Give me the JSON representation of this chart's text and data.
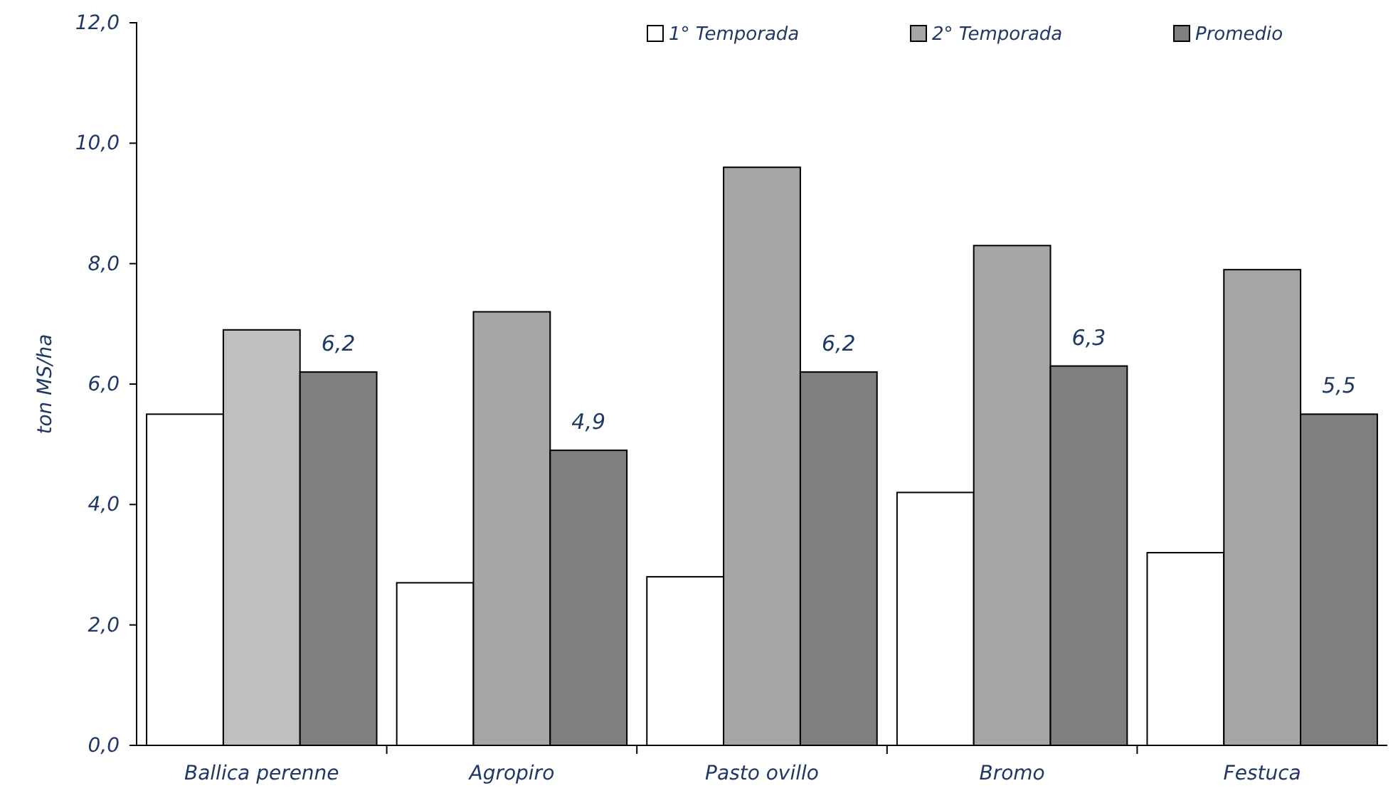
{
  "chart_data": {
    "type": "bar",
    "ylabel": "ton MS/ha",
    "categories": [
      "Ballica perenne",
      "Agropiro",
      "Pasto ovillo",
      "Bromo",
      "Festuca"
    ],
    "series": [
      {
        "name": "1° Temporada",
        "color": "#ffffff",
        "values": [
          5.5,
          2.7,
          2.8,
          4.2,
          3.2
        ]
      },
      {
        "name": "2° Temporada",
        "color": "#a6a6a6",
        "colors": [
          "#bfbfbf",
          "#a6a6a6",
          "#a6a6a6",
          "#a6a6a6",
          "#a6a6a6"
        ],
        "values": [
          6.9,
          7.2,
          9.6,
          8.3,
          7.9
        ]
      },
      {
        "name": "Promedio",
        "color": "#7f7f7f",
        "values": [
          6.2,
          4.9,
          6.2,
          6.3,
          5.5
        ],
        "value_labels": [
          "6,2",
          "4,9",
          "6,2",
          "6,3",
          "5,5"
        ]
      }
    ],
    "ylim": [
      0,
      12
    ],
    "yticks": [
      {
        "value": 0,
        "label": "0,0"
      },
      {
        "value": 2,
        "label": "2,0"
      },
      {
        "value": 4,
        "label": "4,0"
      },
      {
        "value": 6,
        "label": "6,0"
      },
      {
        "value": 8,
        "label": "8,0"
      },
      {
        "value": 10,
        "label": "10,0"
      },
      {
        "value": 12,
        "label": "12,0"
      }
    ],
    "grid": false,
    "legend": "top right"
  }
}
